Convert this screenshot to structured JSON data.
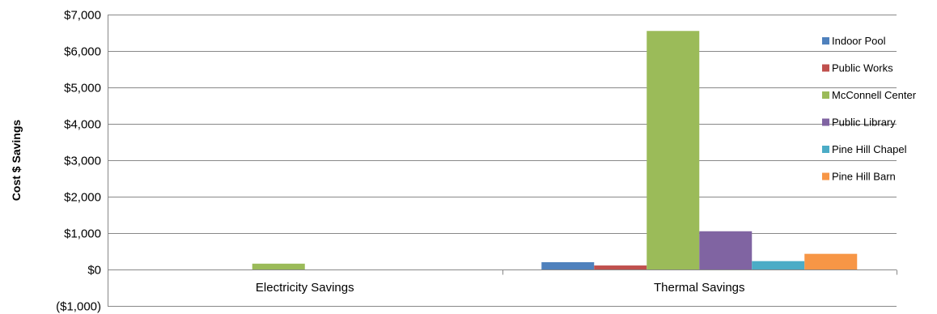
{
  "chart_data": {
    "type": "bar",
    "ylabel": "Cost $ Savings",
    "xlabel": "",
    "categories": [
      "Electricity Savings",
      "Thermal Savings"
    ],
    "ylim": [
      -1000,
      7000
    ],
    "yticks": [
      -1000,
      0,
      1000,
      2000,
      3000,
      4000,
      5000,
      6000,
      7000
    ],
    "ytick_labels": [
      "($1,000)",
      "$0",
      "$1,000",
      "$2,000",
      "$3,000",
      "$4,000",
      "$5,000",
      "$6,000",
      "$7,000"
    ],
    "negative_tick_color": "#ff0000",
    "grid": true,
    "legend_position": "right",
    "series": [
      {
        "name": "Indoor Pool",
        "color": "#4f81bd",
        "values": [
          0,
          200
        ]
      },
      {
        "name": "Public Works",
        "color": "#c0504d",
        "values": [
          0,
          110
        ]
      },
      {
        "name": "McConnell Center",
        "color": "#9bbb59",
        "values": [
          160,
          6550
        ]
      },
      {
        "name": "Public Library",
        "color": "#8064a2",
        "values": [
          0,
          1050
        ]
      },
      {
        "name": "Pine Hill Chapel",
        "color": "#4bacc6",
        "values": [
          0,
          230
        ]
      },
      {
        "name": "Pine Hill Barn",
        "color": "#f79646",
        "values": [
          0,
          430
        ]
      }
    ]
  }
}
